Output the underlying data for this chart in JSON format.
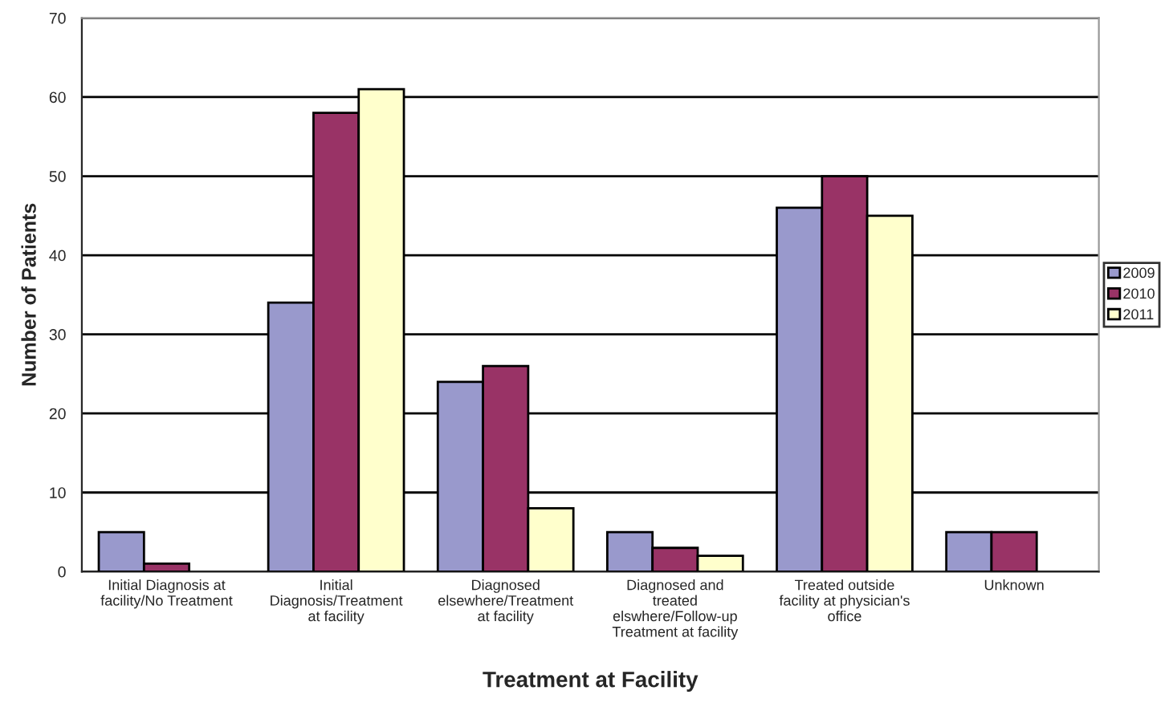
{
  "chart_data": {
    "type": "bar",
    "xlabel": "Treatment at Facility",
    "ylabel": "Number of Patients",
    "categories": [
      "Initial Diagnosis at\nfacility/No Treatment",
      "Initial\nDiagnosis/Treatment\nat facility",
      "Diagnosed\nelsewhere/Treatment\nat facility",
      "Diagnosed and\ntreated\nelswhere/Follow-up\nTreatment at facility",
      "Treated outside\nfacility at physician's\noffice",
      "Unknown"
    ],
    "series": [
      {
        "name": "2009",
        "color": "#9999cc",
        "values": [
          5,
          34,
          24,
          5,
          46,
          5
        ]
      },
      {
        "name": "2010",
        "color": "#993366",
        "values": [
          1,
          58,
          26,
          3,
          50,
          5
        ]
      },
      {
        "name": "2011",
        "color": "#ffffcc",
        "values": [
          null,
          61,
          8,
          2,
          45,
          null
        ]
      }
    ],
    "ylim": [
      0,
      70
    ],
    "yticks": [
      0,
      10,
      20,
      30,
      40,
      50,
      60,
      70
    ],
    "grid": "y",
    "legend": "right"
  }
}
